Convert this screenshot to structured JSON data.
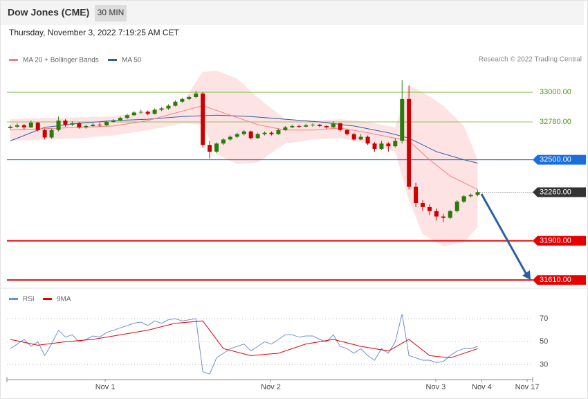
{
  "header": {
    "title": "Dow Jones (CME)",
    "interval": "30 MIN",
    "timestamp": "Thursday, November 3, 2022 7:19:25 AM CET"
  },
  "chart_data": {
    "type": "candlestick",
    "credit": "Research © 2022 Trading Central",
    "up_color": "#2b7a0b",
    "down_color": "#cc0000",
    "xlim": [
      0,
      76
    ],
    "ylim": [
      31570,
      33170
    ],
    "xticks": [
      {
        "value": 13.8,
        "label": "Nov 1"
      },
      {
        "value": 37.9,
        "label": "Nov 2"
      },
      {
        "value": 61.9,
        "label": "Nov 3"
      },
      {
        "value": 68.6,
        "label": "Nov 4"
      },
      {
        "value": 75.2,
        "label": "Nov 17"
      }
    ],
    "candles": [
      [
        32735,
        32760,
        32725,
        32745
      ],
      [
        32745,
        32770,
        32735,
        32755
      ],
      [
        32755,
        32765,
        32725,
        32740
      ],
      [
        32740,
        32790,
        32735,
        32775
      ],
      [
        32775,
        32780,
        32710,
        32720
      ],
      [
        32720,
        32730,
        32650,
        32665
      ],
      [
        32665,
        32730,
        32655,
        32720
      ],
      [
        32720,
        32820,
        32710,
        32790
      ],
      [
        32790,
        32800,
        32745,
        32760
      ],
      [
        32760,
        32785,
        32750,
        32770
      ],
      [
        32770,
        32780,
        32730,
        32740
      ],
      [
        32740,
        32760,
        32730,
        32750
      ],
      [
        32750,
        32770,
        32745,
        32760
      ],
      [
        32760,
        32775,
        32745,
        32755
      ],
      [
        32755,
        32790,
        32750,
        32780
      ],
      [
        32780,
        32800,
        32775,
        32790
      ],
      [
        32790,
        32820,
        32785,
        32810
      ],
      [
        32810,
        32840,
        32800,
        32830
      ],
      [
        32830,
        32860,
        32825,
        32850
      ],
      [
        32850,
        32870,
        32840,
        32855
      ],
      [
        32855,
        32865,
        32830,
        32840
      ],
      [
        32840,
        32880,
        32835,
        32870
      ],
      [
        32870,
        32890,
        32860,
        32880
      ],
      [
        32880,
        32910,
        32870,
        32900
      ],
      [
        32900,
        32940,
        32895,
        32930
      ],
      [
        32930,
        32960,
        32920,
        32950
      ],
      [
        32950,
        32975,
        32940,
        32965
      ],
      [
        32965,
        33010,
        32955,
        32990
      ],
      [
        32990,
        33000,
        32590,
        32610
      ],
      [
        32610,
        32640,
        32510,
        32560
      ],
      [
        32560,
        32630,
        32550,
        32620
      ],
      [
        32620,
        32660,
        32610,
        32650
      ],
      [
        32650,
        32680,
        32640,
        32670
      ],
      [
        32670,
        32700,
        32660,
        32690
      ],
      [
        32690,
        32720,
        32680,
        32710
      ],
      [
        32710,
        32715,
        32650,
        32660
      ],
      [
        32660,
        32700,
        32655,
        32690
      ],
      [
        32690,
        32710,
        32680,
        32700
      ],
      [
        32700,
        32710,
        32680,
        32690
      ],
      [
        32690,
        32730,
        32685,
        32720
      ],
      [
        32720,
        32750,
        32715,
        32740
      ],
      [
        32740,
        32760,
        32735,
        32750
      ],
      [
        32750,
        32760,
        32735,
        32745
      ],
      [
        32745,
        32765,
        32740,
        32755
      ],
      [
        32755,
        32770,
        32745,
        32760
      ],
      [
        32760,
        32765,
        32740,
        32750
      ],
      [
        32750,
        32755,
        32730,
        32740
      ],
      [
        32740,
        32785,
        32735,
        32770
      ],
      [
        32770,
        32775,
        32710,
        32720
      ],
      [
        32720,
        32730,
        32680,
        32690
      ],
      [
        32690,
        32700,
        32640,
        32650
      ],
      [
        32650,
        32690,
        32645,
        32670
      ],
      [
        32670,
        32680,
        32610,
        32620
      ],
      [
        32620,
        32630,
        32560,
        32580
      ],
      [
        32580,
        32640,
        32575,
        32620
      ],
      [
        32620,
        32630,
        32560,
        32600
      ],
      [
        32600,
        32660,
        32590,
        32640
      ],
      [
        32640,
        33090,
        32620,
        32950
      ],
      [
        32950,
        33050,
        32280,
        32300
      ],
      [
        32300,
        32330,
        32150,
        32180
      ],
      [
        32180,
        32200,
        32120,
        32150
      ],
      [
        32150,
        32170,
        32090,
        32120
      ],
      [
        32120,
        32140,
        32050,
        32080
      ],
      [
        32080,
        32100,
        32040,
        32070
      ],
      [
        32070,
        32130,
        32060,
        32120
      ],
      [
        32120,
        32200,
        32110,
        32190
      ],
      [
        32190,
        32240,
        32180,
        32230
      ],
      [
        32230,
        32250,
        32220,
        32240
      ],
      [
        32240,
        32275,
        32230,
        32260
      ]
    ],
    "ma20": {
      "name": "MA 20 + Bollinger Bands",
      "color": "#f08080",
      "x": [
        0,
        5,
        10,
        15,
        20,
        25,
        28,
        32,
        36,
        40,
        44,
        48,
        52,
        56,
        58,
        61,
        64,
        68
      ],
      "values": [
        32720,
        32730,
        32740,
        32750,
        32790,
        32860,
        32900,
        32830,
        32760,
        32720,
        32720,
        32735,
        32700,
        32660,
        32640,
        32500,
        32380,
        32280
      ]
    },
    "ma50": {
      "name": "MA 50",
      "color": "#2f5ea8",
      "x": [
        0,
        5,
        10,
        15,
        20,
        25,
        30,
        35,
        40,
        45,
        50,
        55,
        58,
        62,
        66,
        68
      ],
      "values": [
        32640,
        32740,
        32770,
        32790,
        32800,
        32820,
        32830,
        32820,
        32800,
        32780,
        32750,
        32700,
        32660,
        32560,
        32500,
        32475
      ]
    },
    "bollinger": {
      "color": "#fde3e3",
      "x": [
        0,
        5,
        10,
        15,
        20,
        25,
        28,
        30,
        33,
        36,
        40,
        44,
        48,
        52,
        56,
        58,
        60,
        63,
        66,
        68
      ],
      "upper": [
        32800,
        32810,
        32815,
        32820,
        32860,
        32920,
        33150,
        33160,
        33100,
        32960,
        32800,
        32790,
        32800,
        32780,
        32740,
        33050,
        33000,
        32900,
        32750,
        32500
      ],
      "lower": [
        32640,
        32650,
        32660,
        32680,
        32720,
        32770,
        32760,
        32540,
        32470,
        32480,
        32620,
        32650,
        32660,
        32620,
        32560,
        32200,
        31950,
        31860,
        31890,
        32000
      ]
    },
    "levels": [
      {
        "value": 33000,
        "label": "33000.00",
        "color": "#8dc35a",
        "text_color": "#4a9a12",
        "box": null,
        "width": 1,
        "extend": false
      },
      {
        "value": 32780,
        "label": "32780.00",
        "color": "#8dc35a",
        "text_color": "#4a9a12",
        "box": null,
        "width": 1,
        "extend": false
      },
      {
        "value": 32500,
        "label": "32500.00",
        "color": "#1f5fbf",
        "text_color": "#ffffff",
        "box": "#1a6fdf",
        "width": 1,
        "extend": true
      },
      {
        "value": 32260,
        "label": "32260.00",
        "color": null,
        "text_color": "#ffffff",
        "box": "#333333",
        "width": 1,
        "extend": true
      },
      {
        "value": 31900,
        "label": "31900.00",
        "color": "#e60000",
        "text_color": "#ffffff",
        "box": "#e60000",
        "width": 2,
        "extend": false
      },
      {
        "value": 31610,
        "label": "31610.00",
        "color": "#e60000",
        "text_color": "#ffffff",
        "box": "#e60000",
        "width": 2,
        "extend": false
      }
    ],
    "rsi": {
      "ylim": [
        19,
        79
      ],
      "yticks": [
        30,
        50,
        70
      ],
      "series": {
        "name": "RSI",
        "color": "#6a8fd8",
        "values": [
          44,
          48,
          52,
          46,
          50,
          38,
          48,
          60,
          54,
          56,
          50,
          52,
          55,
          54,
          58,
          60,
          62,
          64,
          66,
          67,
          64,
          68,
          66,
          69,
          70,
          68,
          69,
          70,
          24,
          22,
          36,
          40,
          44,
          46,
          48,
          42,
          46,
          50,
          48,
          52,
          56,
          56,
          54,
          55,
          55,
          52,
          50,
          56,
          46,
          44,
          40,
          44,
          38,
          34,
          44,
          40,
          50,
          74,
          38,
          36,
          34,
          34,
          32,
          33,
          38,
          42,
          44,
          44,
          46
        ]
      },
      "ma": {
        "name": "9MA",
        "color": "#e60000",
        "x": [
          0,
          4,
          8,
          12,
          16,
          20,
          24,
          28,
          31,
          35,
          39,
          43,
          47,
          51,
          55,
          58,
          61,
          64,
          68
        ],
        "values": [
          52,
          47,
          50,
          52,
          56,
          60,
          66,
          68,
          44,
          38,
          40,
          48,
          52,
          46,
          42,
          52,
          38,
          36,
          44
        ]
      }
    }
  }
}
